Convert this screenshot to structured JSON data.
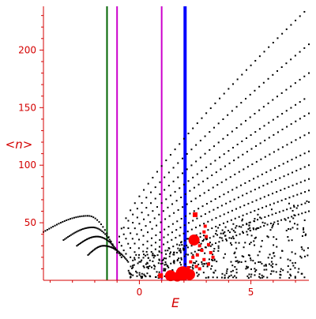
{
  "chart_data": {
    "type": "scatter",
    "title": "",
    "xlabel": "E",
    "ylabel": "<n>",
    "xlim": [
      -4.3,
      7.6
    ],
    "ylim": [
      0,
      238
    ],
    "x_ticks": [
      {
        "value": 0,
        "label": "0"
      },
      {
        "value": 5,
        "label": "5"
      }
    ],
    "y_ticks": [
      {
        "value": 50,
        "label": "50"
      },
      {
        "value": 100,
        "label": "100"
      },
      {
        "value": 150,
        "label": "150"
      },
      {
        "value": 200,
        "label": "200"
      }
    ],
    "grid": false,
    "legend": "none",
    "colors": {
      "axis": "#d40000",
      "tick_labels": "#d40000",
      "axis_labels": "#d40000",
      "black_points": "#000000",
      "red_points": "#ff0000",
      "vline_green": "#006400",
      "vline_magenta": "#cc00cc",
      "vline_blue": "#0000ff"
    },
    "vertical_lines": [
      {
        "x": -1.45,
        "color": "#006400",
        "width": 2
      },
      {
        "x": -1.0,
        "color": "#cc00cc",
        "width": 2
      },
      {
        "x": 1.0,
        "color": "#cc00cc",
        "width": 2
      },
      {
        "x": 2.05,
        "color": "#0000ff",
        "width": 4
      }
    ],
    "curves_black": [
      {
        "x0": -0.8,
        "x1": 7.6,
        "y0": 45,
        "y1": 237,
        "curv": 0.35
      },
      {
        "x0": -0.9,
        "x1": 7.6,
        "y0": 38,
        "y1": 205,
        "curv": 0.35
      },
      {
        "x0": -0.9,
        "x1": 7.6,
        "y0": 33,
        "y1": 180,
        "curv": 0.33
      },
      {
        "x0": -0.8,
        "x1": 7.6,
        "y0": 30,
        "y1": 160,
        "curv": 0.32
      },
      {
        "x0": -0.7,
        "x1": 7.6,
        "y0": 26,
        "y1": 145,
        "curv": 0.3
      },
      {
        "x0": -0.6,
        "x1": 7.6,
        "y0": 23,
        "y1": 128,
        "curv": 0.3
      },
      {
        "x0": -0.4,
        "x1": 7.6,
        "y0": 20,
        "y1": 112,
        "curv": 0.28
      },
      {
        "x0": -0.2,
        "x1": 7.6,
        "y0": 18,
        "y1": 100,
        "curv": 0.28
      },
      {
        "x0": 0.0,
        "x1": 7.6,
        "y0": 16,
        "y1": 88,
        "curv": 0.25
      },
      {
        "x0": 0.3,
        "x1": 7.6,
        "y0": 14,
        "y1": 78,
        "curv": 0.22
      },
      {
        "x0": 0.7,
        "x1": 7.6,
        "y0": 12,
        "y1": 68,
        "curv": 0.2
      },
      {
        "x0": 1.1,
        "x1": 7.6,
        "y0": 10,
        "y1": 60,
        "curv": 0.18
      }
    ],
    "arches_black": [
      {
        "x0": -4.3,
        "x1": -1.2,
        "peak_x": -2.3,
        "peak_y": 56,
        "y_start": 42,
        "y_end": 30
      },
      {
        "x0": -3.4,
        "x1": -1.0,
        "peak_x": -2.1,
        "peak_y": 46,
        "y_start": 35,
        "y_end": 24
      },
      {
        "x0": -2.8,
        "x1": -0.8,
        "peak_x": -1.9,
        "peak_y": 38,
        "y_start": 30,
        "y_end": 20
      },
      {
        "x0": -2.3,
        "x1": -0.5,
        "peak_x": -1.6,
        "peak_y": 30,
        "y_start": 22,
        "y_end": 16
      }
    ],
    "cloud_black": {
      "x_range": [
        -0.5,
        7.6
      ],
      "y_range": [
        2,
        70
      ],
      "count": 420
    },
    "red_points": [
      {
        "x": 1.4,
        "y": 4,
        "r": 7
      },
      {
        "x": 1.7,
        "y": 3,
        "r": 6
      },
      {
        "x": 1.95,
        "y": 6,
        "r": 9
      },
      {
        "x": 2.25,
        "y": 5,
        "r": 7
      },
      {
        "x": 2.45,
        "y": 35,
        "r": 7
      },
      {
        "x": 2.5,
        "y": 57,
        "r": 3
      },
      {
        "x": 0.95,
        "y": 4,
        "r": 3
      },
      {
        "x": 2.9,
        "y": 42,
        "r": 2
      },
      {
        "x": 3.0,
        "y": 38,
        "r": 2
      },
      {
        "x": 3.1,
        "y": 31,
        "r": 2
      },
      {
        "x": 2.7,
        "y": 30,
        "r": 2
      },
      {
        "x": 2.8,
        "y": 26,
        "r": 2
      },
      {
        "x": 3.2,
        "y": 24,
        "r": 2
      },
      {
        "x": 2.6,
        "y": 22,
        "r": 2
      },
      {
        "x": 2.4,
        "y": 20,
        "r": 2
      },
      {
        "x": 2.9,
        "y": 18,
        "r": 2
      },
      {
        "x": 3.3,
        "y": 20,
        "r": 2
      },
      {
        "x": 2.3,
        "y": 16,
        "r": 2
      },
      {
        "x": 2.55,
        "y": 12,
        "r": 2
      },
      {
        "x": 2.7,
        "y": 10,
        "r": 2
      },
      {
        "x": 3.1,
        "y": 14,
        "r": 2
      },
      {
        "x": 2.2,
        "y": 11,
        "r": 2
      },
      {
        "x": 2.95,
        "y": 47,
        "r": 2
      }
    ]
  }
}
